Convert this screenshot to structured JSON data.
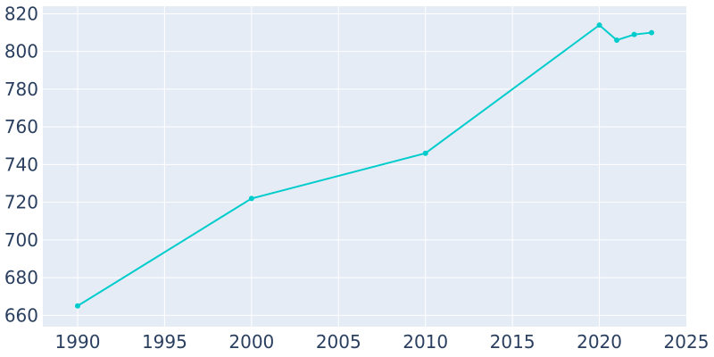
{
  "chart_data": {
    "type": "line",
    "title": "",
    "xlabel": "",
    "ylabel": "",
    "xlim": [
      1988,
      2025
    ],
    "ylim": [
      654,
      824
    ],
    "x_ticks": [
      1990,
      1995,
      2000,
      2005,
      2010,
      2015,
      2020,
      2025
    ],
    "y_ticks": [
      660,
      680,
      700,
      720,
      740,
      760,
      780,
      800,
      820
    ],
    "grid": true,
    "legend": "none",
    "colors": {
      "line": "#00cccc",
      "plot_bg": "#e5ecf6",
      "tick_text": "#2a3f5f"
    },
    "series": [
      {
        "x": [
          1990,
          2000,
          2010,
          2020,
          2021,
          2022,
          2023
        ],
        "y": [
          665,
          722,
          746,
          814,
          806,
          809,
          810
        ]
      }
    ]
  }
}
